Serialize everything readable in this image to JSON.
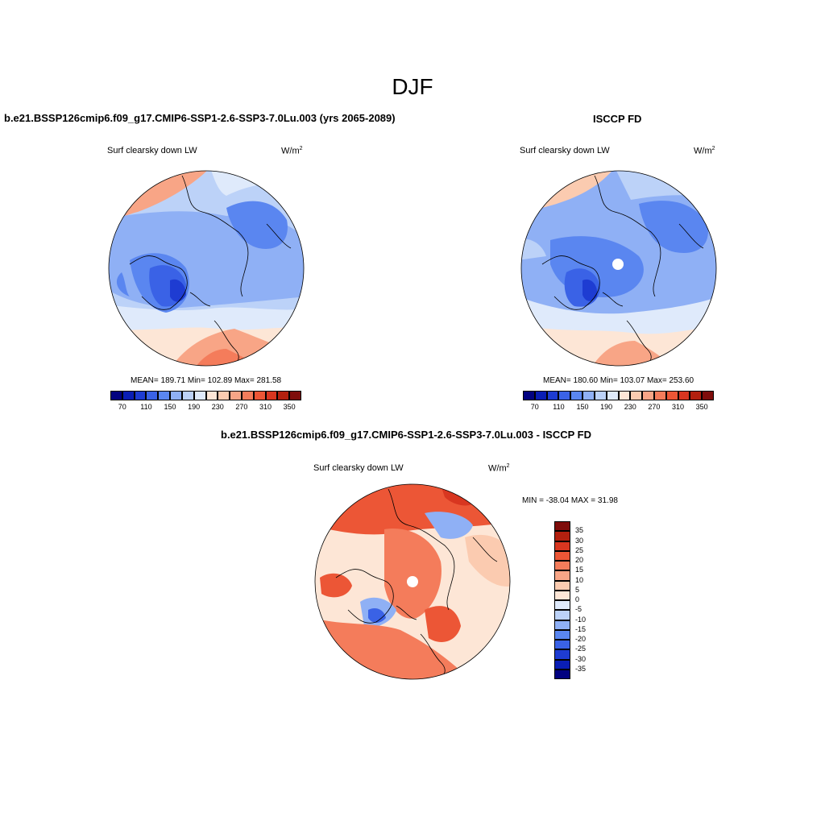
{
  "figure": {
    "season": "DJF",
    "left_title": "b.e21.BSSP126cmip6.f09_g17.CMIP6-SSP1-2.6-SSP3-7.0Lu.003 (yrs 2065-2089)",
    "right_title": "ISCCP FD",
    "diff_title": "b.e21.BSSP126cmip6.f09_g17.CMIP6-SSP1-2.6-SSP3-7.0Lu.003 - ISCCP FD"
  },
  "panels": {
    "model": {
      "variable": "Surf clearsky down LW",
      "units_base": "W/m",
      "units_exp": "2",
      "stats": "MEAN= 189.71  Min= 102.89  Max= 281.58"
    },
    "obs": {
      "variable": "Surf clearsky down LW",
      "units_base": "W/m",
      "units_exp": "2",
      "stats": "MEAN= 180.60  Min= 103.07  Max= 253.60"
    },
    "diff": {
      "variable": "Surf clearsky down LW",
      "units_base": "W/m",
      "units_exp": "2",
      "stats": "MIN = -38.04 MAX =  31.98"
    }
  },
  "chart_data": [
    {
      "type": "heatmap",
      "name": "model",
      "projection": "north polar stereographic",
      "colorbar_labels": [
        "70",
        "110",
        "150",
        "190",
        "230",
        "270",
        "310",
        "350"
      ],
      "colorbar_colors": [
        "#020280",
        "#0a1eb4",
        "#1e3cd2",
        "#3a62e6",
        "#5a86f0",
        "#8fb0f5",
        "#bcd2f8",
        "#dfeafb",
        "#fde6d6",
        "#fbcbb0",
        "#f8a586",
        "#f47c5b",
        "#ec5636",
        "#d83620",
        "#b3200f",
        "#7f0d0b"
      ]
    },
    {
      "type": "heatmap",
      "name": "obs",
      "projection": "north polar stereographic",
      "colorbar_labels": [
        "70",
        "110",
        "150",
        "190",
        "230",
        "270",
        "310",
        "350"
      ],
      "colorbar_colors": [
        "#020280",
        "#0a1eb4",
        "#1e3cd2",
        "#3a62e6",
        "#5a86f0",
        "#8fb0f5",
        "#bcd2f8",
        "#dfeafb",
        "#fde6d6",
        "#fbcbb0",
        "#f8a586",
        "#f47c5b",
        "#ec5636",
        "#d83620",
        "#b3200f",
        "#7f0d0b"
      ]
    },
    {
      "type": "heatmap",
      "name": "difference",
      "projection": "north polar stereographic",
      "colorbar_labels": [
        "35",
        "30",
        "25",
        "20",
        "15",
        "10",
        "5",
        "0",
        "-5",
        "-10",
        "-15",
        "-20",
        "-25",
        "-30",
        "-35"
      ],
      "colorbar_colors": [
        "#7f0d0b",
        "#b3200f",
        "#d83620",
        "#ec5636",
        "#f47c5b",
        "#f8a586",
        "#fbcbb0",
        "#fde6d6",
        "#dfeafb",
        "#bcd2f8",
        "#8fb0f5",
        "#5a86f0",
        "#3a62e6",
        "#1e3cd2",
        "#0a1eb4",
        "#020280"
      ]
    }
  ]
}
